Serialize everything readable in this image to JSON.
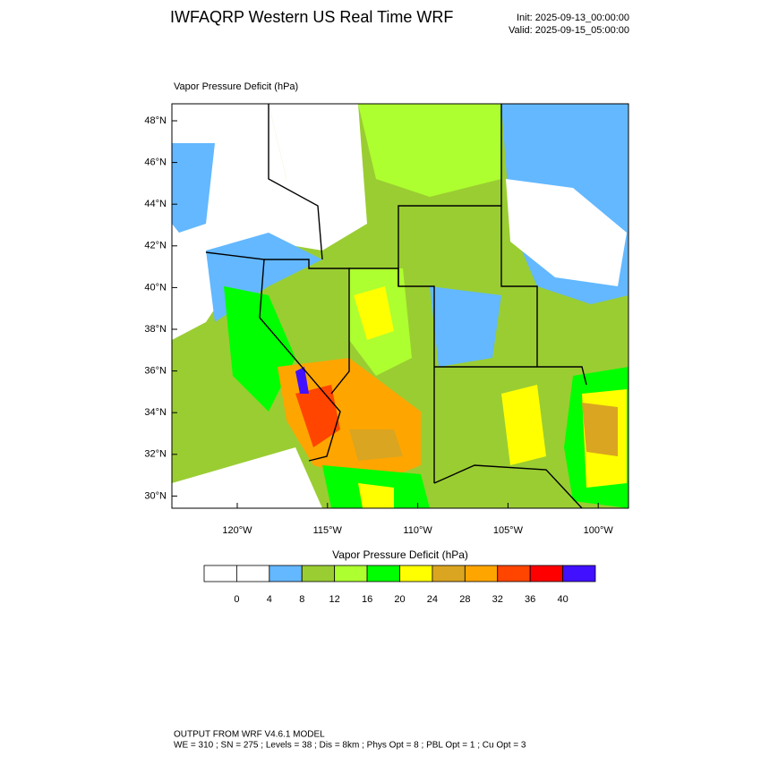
{
  "header": {
    "title": "IWFAQRP Western US Real Time WRF",
    "init": "Init: 2025-09-13_00:00:00",
    "valid": "Valid: 2025-09-15_05:00:00"
  },
  "map": {
    "field_label": "Vapor Pressure Deficit   (hPa)",
    "lat_labels": [
      "48°N",
      "46°N",
      "44°N",
      "42°N",
      "40°N",
      "38°N",
      "36°N",
      "34°N",
      "32°N",
      "30°N"
    ],
    "lon_labels": [
      "120°W",
      "115°W",
      "110°W",
      "105°W",
      "100°W"
    ]
  },
  "colorbar": {
    "title": "Vapor Pressure Deficit  (hPa)",
    "colors": [
      "#ffffff",
      "#ffffff",
      "#63b8ff",
      "#9acd32",
      "#adff2f",
      "#00ff00",
      "#ffff00",
      "#daa520",
      "#ffa500",
      "#ff4500",
      "#ff0000",
      "#4010ff"
    ],
    "labels": [
      "0",
      "4",
      "8",
      "12",
      "16",
      "20",
      "24",
      "28",
      "32",
      "36",
      "40"
    ]
  },
  "footer": {
    "line1": "OUTPUT FROM WRF V4.6.1 MODEL",
    "line2": "WE = 310 ; SN = 275 ; Levels = 38 ; Dis = 8km ; Phys Opt = 8 ; PBL Opt = 1 ; Cu Opt = 3"
  }
}
